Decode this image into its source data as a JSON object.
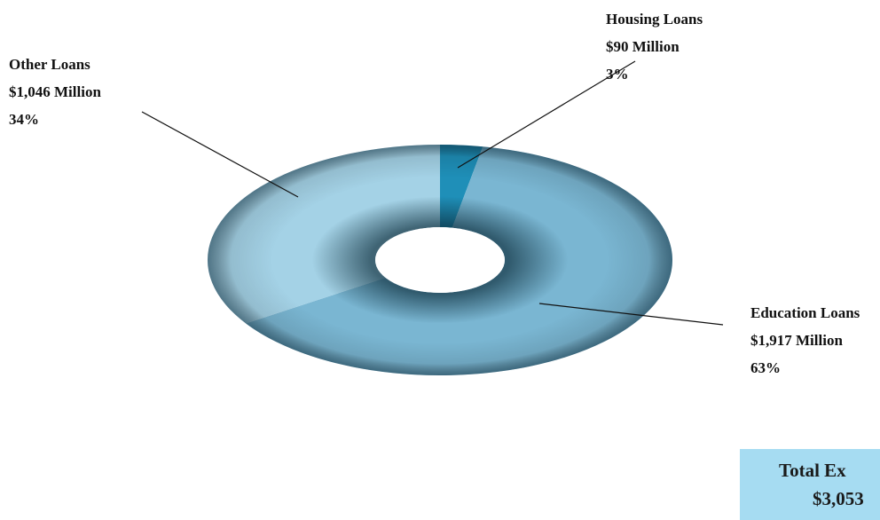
{
  "chart_data": {
    "type": "pie",
    "style": "donut",
    "slices": [
      {
        "label": "Housing Loans",
        "amount": "$90 Million",
        "value": 90,
        "percent": "3%",
        "color": "#1f8fb8"
      },
      {
        "label": "Education Loans",
        "amount": "$1,917 Million",
        "value": 1917,
        "percent": "63%",
        "color": "#7ab6d2"
      },
      {
        "label": "Other Loans",
        "amount": "$1,046 Million",
        "value": 1046,
        "percent": "34%",
        "color": "#a4d2e6"
      }
    ]
  },
  "total": {
    "line1": "Total Ex",
    "line2": "$3,053",
    "background": "#a6dcf2"
  }
}
